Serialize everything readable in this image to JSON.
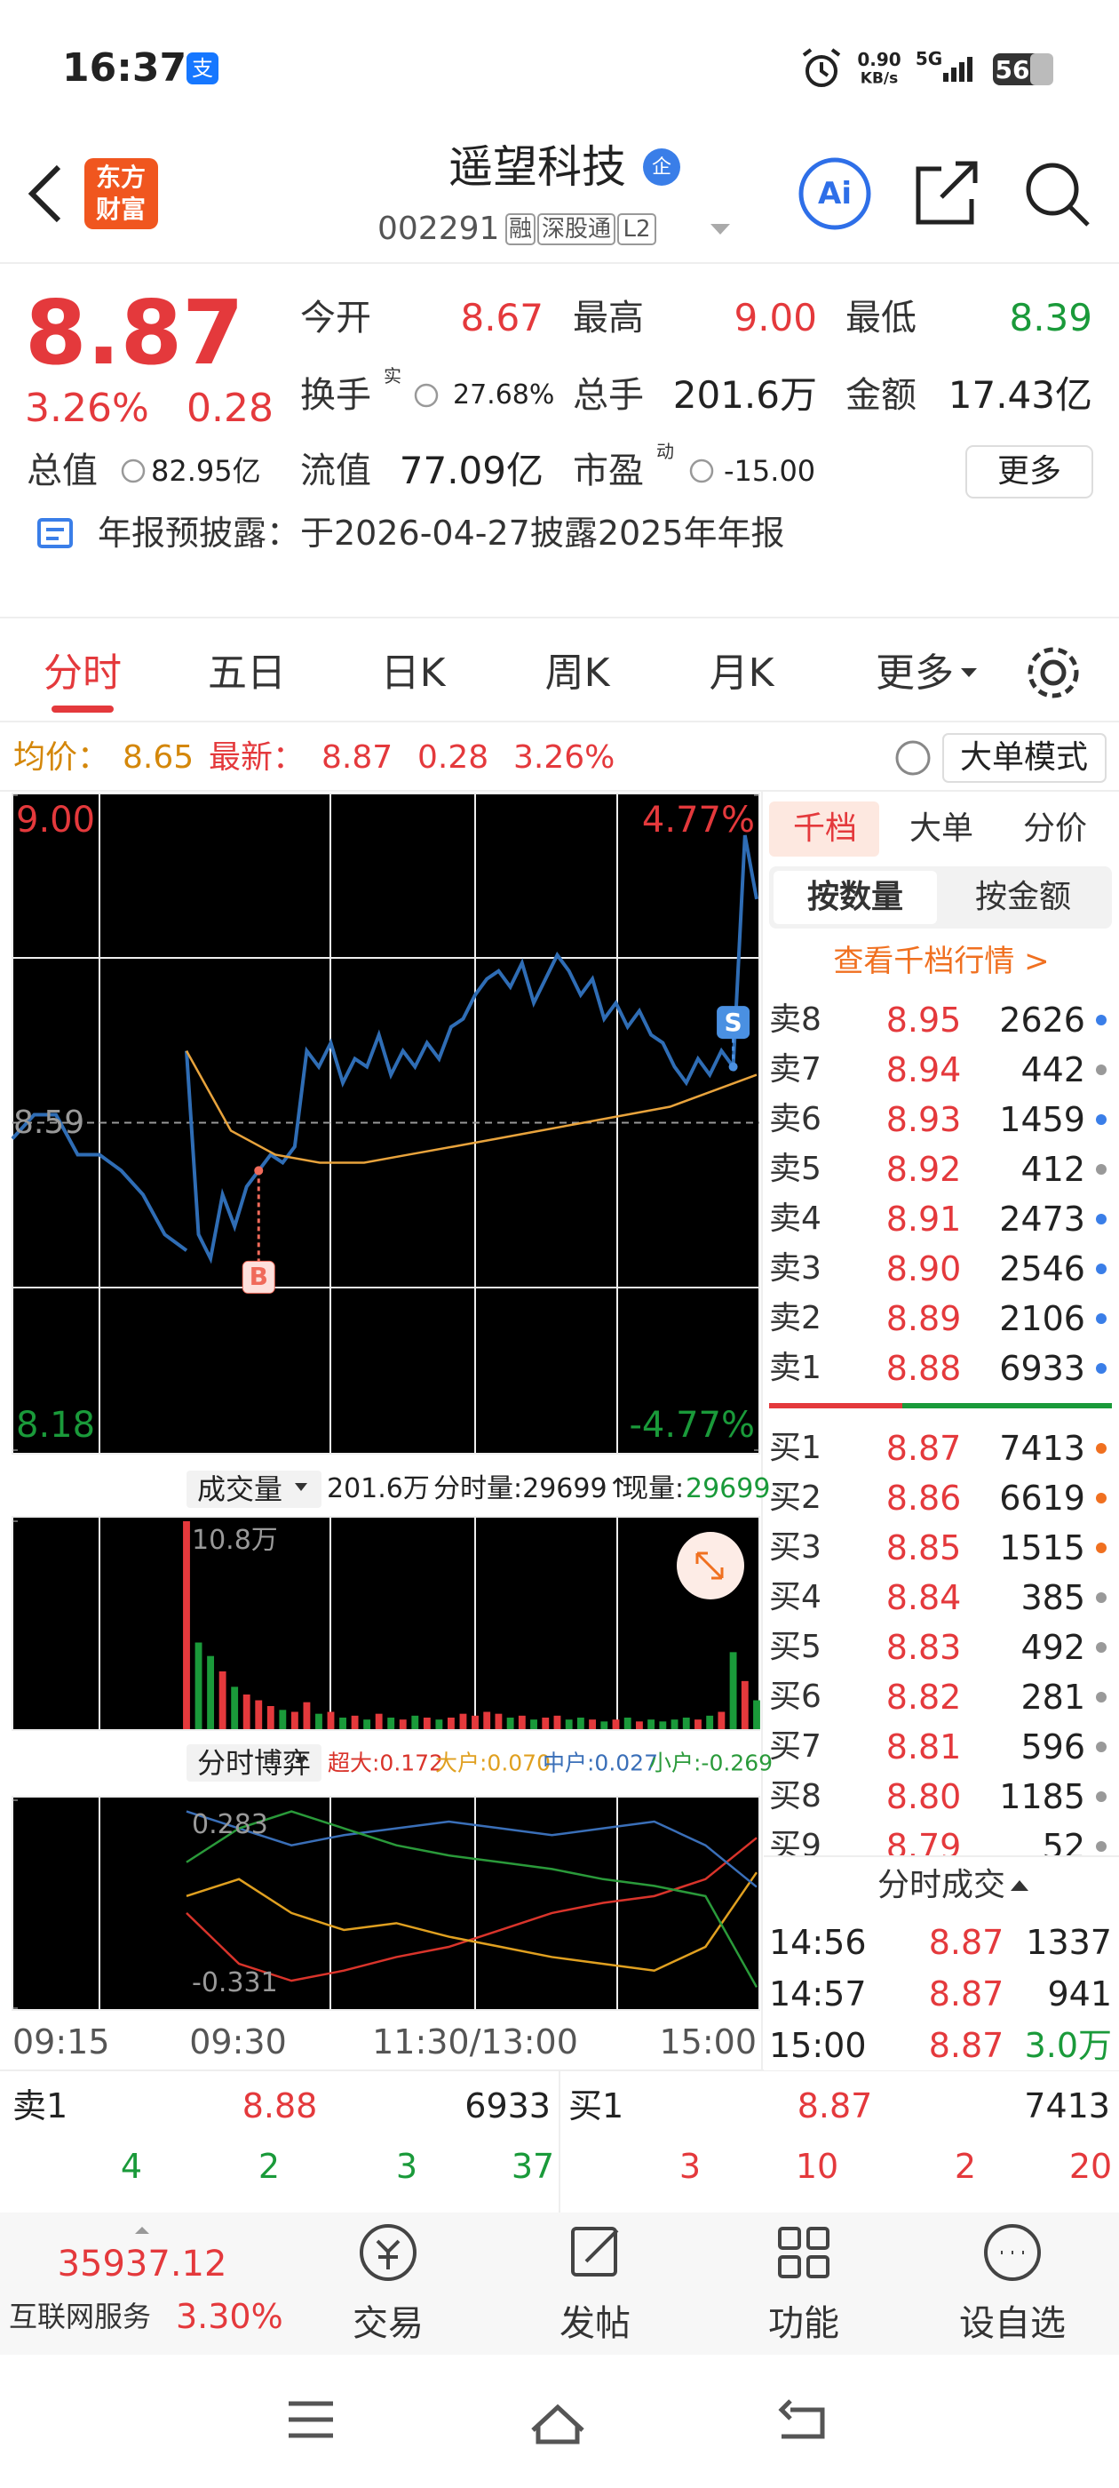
{
  "status_bar": {
    "time": "16:37",
    "app_icon": "支",
    "net_speed": "0.90",
    "net_unit": "KB/s",
    "network": "5G",
    "battery": "56"
  },
  "header": {
    "logo_line1": "东方",
    "logo_line2": "财富",
    "title": "遥望科技",
    "badge": "企",
    "code": "002291",
    "tags": [
      "融",
      "深股通",
      "L2"
    ],
    "ai": "Ai"
  },
  "quote": {
    "price": "8.87",
    "change_pct": "3.26%",
    "change": "0.28",
    "more": "更多",
    "fields": [
      {
        "label": "今开",
        "value": "8.67",
        "color": "#e4393c"
      },
      {
        "label": "最高",
        "value": "9.00",
        "color": "#e4393c"
      },
      {
        "label": "最低",
        "value": "8.39",
        "color": "#1a9a3a"
      },
      {
        "label": "换手",
        "sup": "实",
        "value": "27.68%"
      },
      {
        "label": "总手",
        "value": "201.6万"
      },
      {
        "label": "金额",
        "value": "17.43亿"
      },
      {
        "label": "总值",
        "value": "82.95亿"
      },
      {
        "label": "流值",
        "value": "77.09亿"
      },
      {
        "label": "市盈",
        "sup": "动",
        "value": "-15.00"
      }
    ]
  },
  "notice": "年报预披露：于2026-04-27披露2025年年报",
  "tabs": [
    "分时",
    "五日",
    "日K",
    "周K",
    "月K",
    "更多"
  ],
  "info_bar": {
    "avg_label": "均价：",
    "avg": "8.65",
    "last_label": "最新：",
    "last": "8.87",
    "change": "0.28",
    "change_pct": "3.26%",
    "mode": "大单模式"
  },
  "chart_data": [
    {
      "type": "line",
      "ylim": [
        8.18,
        9
      ],
      "yticks": [
        {
          "value": 9,
          "label": "9.00"
        },
        8.18
      ],
      "y2lim": [
        -4.77,
        4.77
      ],
      "y2ticks": [
        {
          "value": 4.77,
          "label": "4.77%"
        },
        {
          "value": -4.77,
          "label": "-4.77%"
        }
      ],
      "prev_close": 8.59,
      "pre_market": {
        "color": "#2f6db5",
        "values": [
          8.57,
          8.6,
          8.6,
          8.55,
          8.55,
          8.53,
          8.5,
          8.45,
          8.43
        ]
      },
      "series": [
        {
          "color": "#2f6db5",
          "values": [
            8.68,
            8.45,
            8.42,
            8.5,
            8.46,
            8.51,
            8.53,
            8.55,
            8.54,
            8.56,
            8.68,
            8.66,
            8.69,
            8.64,
            8.67,
            8.66,
            8.7,
            8.65,
            8.68,
            8.66,
            8.69,
            8.67,
            8.71,
            8.72,
            8.75,
            8.77,
            8.78,
            8.76,
            8.79,
            8.74,
            8.77,
            8.8,
            8.78,
            8.75,
            8.77,
            8.72,
            8.74,
            8.71,
            8.73,
            8.7,
            8.69,
            8.66,
            8.64,
            8.67,
            8.65,
            8.68,
            8.66,
            8.95,
            8.87
          ]
        },
        {
          "color": "#e8a33c",
          "values": [
            8.68,
            8.58,
            8.55,
            8.54,
            8.54,
            8.55,
            8.56,
            8.57,
            8.58,
            8.59,
            8.6,
            8.61,
            8.63,
            8.65
          ]
        }
      ],
      "markers": [
        {
          "label": "B",
          "index": 6,
          "color": "#f06a5a"
        },
        {
          "label": "S",
          "index": 46,
          "color": "#4a90e2"
        }
      ]
    },
    {
      "type": "bar",
      "title": "成交量",
      "total": "201.6万",
      "period_volume": "分时量:29699↑",
      "current_label": "现量:",
      "current": "29699",
      "ylim": [
        0,
        108000
      ],
      "yticks": [
        {
          "value": 108000,
          "label": "10.8万"
        }
      ],
      "colors": {
        "up": "#e4393c",
        "down": "#1a9a3a"
      },
      "values": [
        108000,
        45000,
        38000,
        30000,
        22000,
        18000,
        15000,
        12000,
        10000,
        9000,
        14000,
        8000,
        9000,
        6000,
        7000,
        5000,
        8000,
        6000,
        5000,
        7000,
        6000,
        5000,
        6000,
        8000,
        7000,
        9000,
        8000,
        6000,
        7000,
        5000,
        6000,
        7000,
        5000,
        6000,
        5000,
        4000,
        5000,
        6000,
        4000,
        5000,
        4000,
        5000,
        6000,
        5000,
        7000,
        9000,
        40000,
        25000,
        15000
      ]
    },
    {
      "type": "line",
      "title": "分时博弈",
      "ylim": [
        -0.331,
        0.283
      ],
      "yticks": [
        0.283,
        -0.331
      ],
      "x_labels": [
        "09:15",
        "09:30",
        "11:30/13:00",
        "15:00"
      ],
      "series": [
        {
          "name": "超大:0.172",
          "color": "#d9342b",
          "values": [
            -0.05,
            -0.2,
            -0.25,
            -0.22,
            -0.18,
            -0.15,
            -0.1,
            -0.05,
            -0.02,
            0,
            0.05,
            0.172
          ]
        },
        {
          "name": "大户:0.070",
          "color": "#e0a020",
          "values": [
            0,
            0.05,
            -0.05,
            -0.1,
            -0.08,
            -0.12,
            -0.15,
            -0.18,
            -0.2,
            -0.22,
            -0.15,
            0.07
          ]
        },
        {
          "name": "中户:0.027",
          "color": "#3a6fb8",
          "values": [
            0.25,
            0.2,
            0.15,
            0.18,
            0.2,
            0.22,
            0.2,
            0.18,
            0.2,
            0.22,
            0.15,
            0.027
          ]
        },
        {
          "name": "小户:-0.269",
          "color": "#2a9a3a",
          "values": [
            0.1,
            0.2,
            0.25,
            0.2,
            0.15,
            0.12,
            0.1,
            0.08,
            0.05,
            0.03,
            0,
            -0.269
          ]
        }
      ]
    }
  ],
  "order_panel": {
    "tabs": [
      "千档",
      "大单",
      "分价"
    ],
    "subtabs": [
      "按数量",
      "按金额"
    ],
    "link": "查看千档行情 >",
    "asks": [
      {
        "label": "卖8",
        "price": "8.95",
        "volume": "2626",
        "dot": "#3a7ee8"
      },
      {
        "label": "卖7",
        "price": "8.94",
        "volume": "442",
        "dot": "#999999"
      },
      {
        "label": "卖6",
        "price": "8.93",
        "volume": "1459",
        "dot": "#3a7ee8"
      },
      {
        "label": "卖5",
        "price": "8.92",
        "volume": "412",
        "dot": "#999999"
      },
      {
        "label": "卖4",
        "price": "8.91",
        "volume": "2473",
        "dot": "#3a7ee8"
      },
      {
        "label": "卖3",
        "price": "8.90",
        "volume": "2546",
        "dot": "#3a7ee8"
      },
      {
        "label": "卖2",
        "price": "8.89",
        "volume": "2106",
        "dot": "#3a7ee8"
      },
      {
        "label": "卖1",
        "price": "8.88",
        "volume": "6933",
        "dot": "#3a7ee8"
      }
    ],
    "bids": [
      {
        "label": "买1",
        "price": "8.87",
        "volume": "7413",
        "dot": "#f07020"
      },
      {
        "label": "买2",
        "price": "8.86",
        "volume": "6619",
        "dot": "#f07020"
      },
      {
        "label": "买3",
        "price": "8.85",
        "volume": "1515",
        "dot": "#f07020"
      },
      {
        "label": "买4",
        "price": "8.84",
        "volume": "385",
        "dot": "#999999"
      },
      {
        "label": "买5",
        "price": "8.83",
        "volume": "492",
        "dot": "#999999"
      },
      {
        "label": "买6",
        "price": "8.82",
        "volume": "281",
        "dot": "#999999"
      },
      {
        "label": "买7",
        "price": "8.81",
        "volume": "596",
        "dot": "#999999"
      },
      {
        "label": "买8",
        "price": "8.80",
        "volume": "1185",
        "dot": "#999999"
      },
      {
        "label": "买9",
        "price": "8.79",
        "volume": "52",
        "dot": "#999999"
      }
    ]
  },
  "trades_panel": {
    "title": "分时成交",
    "rows": [
      {
        "time": "14:56",
        "price": "8.87",
        "volume": "1337"
      },
      {
        "time": "14:57",
        "price": "8.87",
        "volume": "941"
      },
      {
        "time": "15:00",
        "price": "8.87",
        "volume": "3.0万",
        "color": "#1a9a3a"
      }
    ]
  },
  "bottom_quote": {
    "sell": {
      "label": "卖1",
      "price": "8.88",
      "volume": "6933",
      "counts": [
        "4",
        "2",
        "3",
        "37"
      ]
    },
    "buy": {
      "label": "买1",
      "price": "8.87",
      "volume": "7413",
      "counts": [
        "3",
        "10",
        "2",
        "20"
      ]
    }
  },
  "bottom_nav": {
    "index": "35937.12",
    "index_name": "互联网服务",
    "index_pct": "3.30%",
    "items": [
      "交易",
      "发帖",
      "功能",
      "设自选"
    ]
  }
}
